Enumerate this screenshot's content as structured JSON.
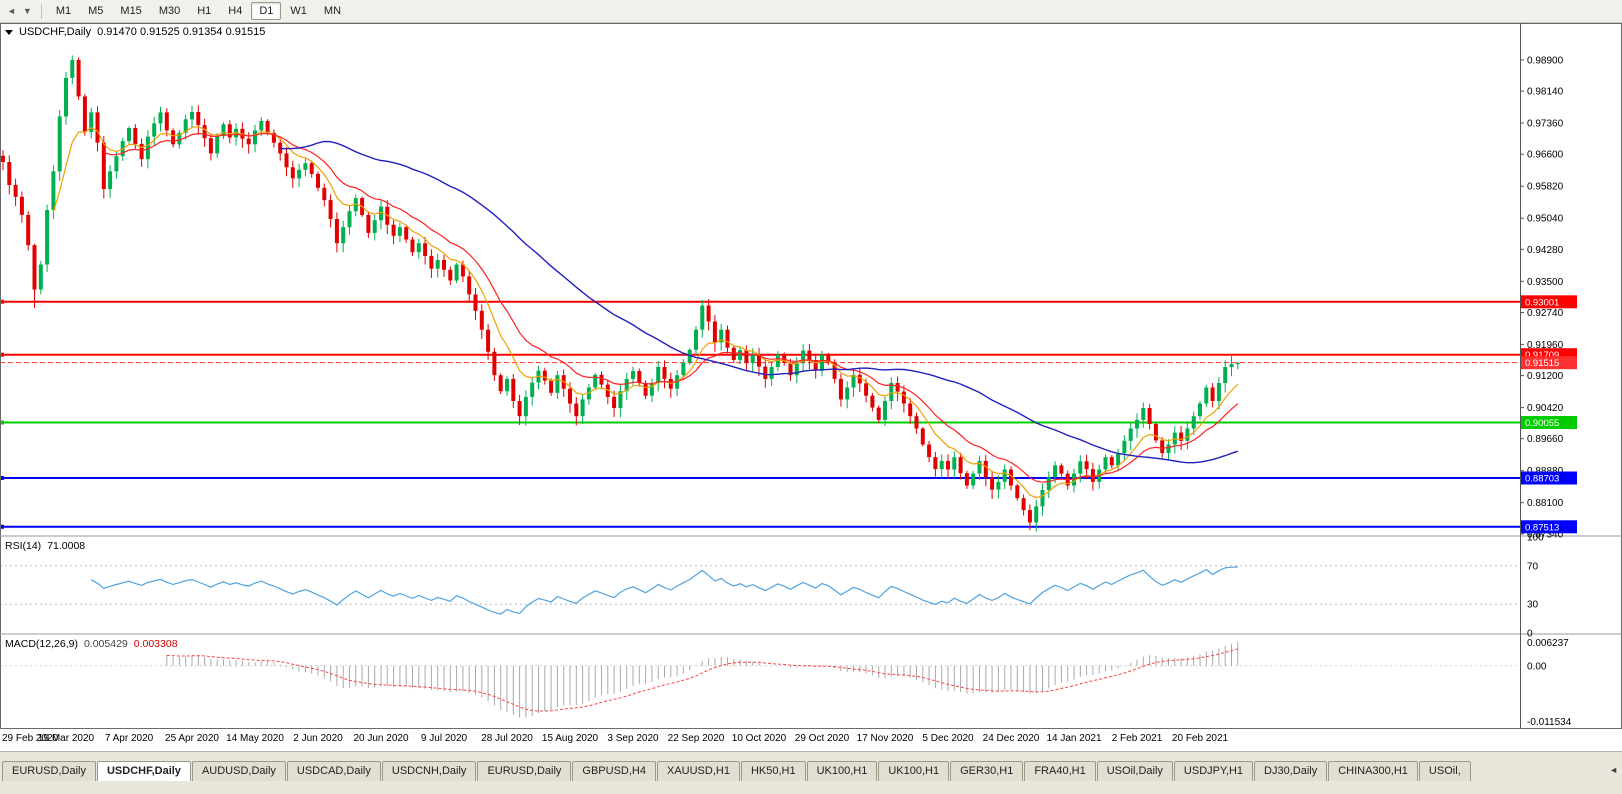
{
  "toolbar": {
    "icons": {
      "back": "◄",
      "dropdown": "▼"
    },
    "timeframes": [
      "M1",
      "M5",
      "M15",
      "M30",
      "H1",
      "H4",
      "D1",
      "W1",
      "MN"
    ],
    "active_timeframe": "D1"
  },
  "chart": {
    "title_symbol": "USDCHF,Daily",
    "title_quote": "0.91470 0.91525 0.91354 0.91515",
    "y_ticks": [
      "0.98900",
      "0.98140",
      "0.97360",
      "0.96600",
      "0.95820",
      "0.95040",
      "0.94280",
      "0.93500",
      "0.92740",
      "0.91960",
      "0.91200",
      "0.90420",
      "0.89660",
      "0.88880",
      "0.88100",
      "0.87340"
    ],
    "x_labels": [
      "29 Feb 2020",
      "19 Mar 2020",
      "7 Apr 2020",
      "25 Apr 2020",
      "14 May 2020",
      "2 Jun 2020",
      "20 Jun 2020",
      "9 Jul 2020",
      "28 Jul 2020",
      "15 Aug 2020",
      "3 Sep 2020",
      "22 Sep 2020",
      "10 Oct 2020",
      "29 Oct 2020",
      "17 Nov 2020",
      "5 Dec 2020",
      "24 Dec 2020",
      "14 Jan 2021",
      "2 Feb 2021",
      "20 Feb 2021"
    ],
    "levels": [
      {
        "price": 0.93001,
        "label": "0.93001",
        "color": "#ff0000",
        "width": 2,
        "style": "solid"
      },
      {
        "price": 0.91709,
        "label": "0.91709",
        "color": "#ff0000",
        "width": 2,
        "style": "solid"
      },
      {
        "price": 0.91515,
        "label": "0.91515",
        "color": "#ff3030",
        "width": 1,
        "style": "dashed"
      },
      {
        "price": 0.90055,
        "label": "0.90055",
        "color": "#00cc00",
        "width": 2,
        "style": "solid"
      },
      {
        "price": 0.88703,
        "label": "0.88703",
        "color": "#0000ff",
        "width": 2,
        "style": "solid"
      },
      {
        "price": 0.87513,
        "label": "0.87513",
        "color": "#0000ff",
        "width": 2,
        "style": "solid"
      }
    ],
    "colors": {
      "up": "#00b050",
      "down": "#e00000",
      "ma_fast": "#f0a000",
      "ma_mid": "#ff2020",
      "ma_slow": "#2020c0",
      "background": "#ffffff"
    },
    "wick_overrides": [
      {
        "i": 5,
        "low": 0.9285
      },
      {
        "i": 11,
        "high": 0.9901
      },
      {
        "i": 195,
        "high": 0.9172
      },
      {
        "i": 196,
        "high": 0.91525,
        "low": 0.91354
      }
    ],
    "closes": [
      0.9641,
      0.9585,
      0.9556,
      0.9512,
      0.9438,
      0.933,
      0.9391,
      0.9524,
      0.9618,
      0.9752,
      0.9846,
      0.989,
      0.9801,
      0.9714,
      0.9762,
      0.9688,
      0.9575,
      0.9618,
      0.9655,
      0.9692,
      0.9724,
      0.9685,
      0.9648,
      0.9703,
      0.9735,
      0.9762,
      0.9718,
      0.9684,
      0.9712,
      0.9745,
      0.9763,
      0.9731,
      0.9699,
      0.9662,
      0.9704,
      0.9733,
      0.9701,
      0.9722,
      0.9698,
      0.9684,
      0.9718,
      0.9741,
      0.9712,
      0.9688,
      0.9662,
      0.9628,
      0.9601,
      0.9622,
      0.9638,
      0.9612,
      0.9578,
      0.9548,
      0.9502,
      0.9443,
      0.9482,
      0.9521,
      0.9553,
      0.9512,
      0.9468,
      0.9499,
      0.9532,
      0.9488,
      0.9461,
      0.9482,
      0.9452,
      0.9421,
      0.9443,
      0.9412,
      0.9381,
      0.9402,
      0.9378,
      0.9352,
      0.9391,
      0.9362,
      0.9318,
      0.9278,
      0.9232,
      0.9178,
      0.9121,
      0.9082,
      0.9112,
      0.9058,
      0.9021,
      0.9068,
      0.9103,
      0.9132,
      0.9108,
      0.9078,
      0.9121,
      0.9088,
      0.9052,
      0.9021,
      0.9062,
      0.9091,
      0.9122,
      0.9098,
      0.9068,
      0.9041,
      0.9082,
      0.9112,
      0.9131,
      0.9102,
      0.9071,
      0.9102,
      0.9141,
      0.9112,
      0.9088,
      0.9121,
      0.9152,
      0.9183,
      0.9232,
      0.9291,
      0.9252,
      0.9201,
      0.9232,
      0.9188,
      0.9158,
      0.9182,
      0.9151,
      0.9172,
      0.9142,
      0.9112,
      0.9141,
      0.9172,
      0.9151,
      0.9121,
      0.9152,
      0.9181,
      0.9158,
      0.9132,
      0.9171,
      0.9152,
      0.9112,
      0.9062,
      0.9091,
      0.9122,
      0.9101,
      0.9071,
      0.9042,
      0.9012,
      0.9058,
      0.9102,
      0.9081,
      0.9052,
      0.9021,
      0.8991,
      0.8952,
      0.8921,
      0.8892,
      0.8912,
      0.8891,
      0.8921,
      0.8882,
      0.8852,
      0.8881,
      0.8912,
      0.8871,
      0.8842,
      0.8861,
      0.8891,
      0.8852,
      0.8821,
      0.8792,
      0.8762,
      0.8801,
      0.8841,
      0.8872,
      0.8901,
      0.8881,
      0.8852,
      0.8881,
      0.8911,
      0.8892,
      0.8861,
      0.8891,
      0.8921,
      0.8901,
      0.8931,
      0.8961,
      0.8991,
      0.9012,
      0.9041,
      0.9002,
      0.8962,
      0.8931,
      0.8952,
      0.8981,
      0.8961,
      0.8991,
      0.9021,
      0.9052,
      0.9091,
      0.9058,
      0.9102,
      0.9141,
      0.9148,
      0.91515
    ]
  },
  "rsi": {
    "name": "RSI(14)",
    "value": "71.0008",
    "ticks": [
      "100",
      "70",
      "30",
      "0"
    ],
    "tick_values": [
      100,
      70,
      30,
      0
    ],
    "guide_levels": [
      70,
      30
    ],
    "color": "#4da3e0"
  },
  "macd": {
    "name": "MACD(12,26,9)",
    "value_main": "0.005429",
    "value_signal": "0.003308",
    "ticks": [
      "0.006237",
      "0.00",
      "-0.011534"
    ],
    "histogram_color": "#a9a9a9",
    "signal_color": "#ff4040"
  },
  "tabs": {
    "items": [
      "EURUSD,Daily",
      "USDCHF,Daily",
      "AUDUSD,Daily",
      "USDCAD,Daily",
      "USDCNH,Daily",
      "EURUSD,Daily",
      "GBPUSD,H4",
      "XAUUSD,H1",
      "HK50,H1",
      "UK100,H1",
      "UK100,H1",
      "GER30,H1",
      "FRA40,H1",
      "USOil,Daily",
      "USDJPY,H1",
      "DJ30,Daily",
      "CHINA300,H1",
      "USOil,"
    ],
    "active_index": 1,
    "scroll_icon": "◄"
  }
}
